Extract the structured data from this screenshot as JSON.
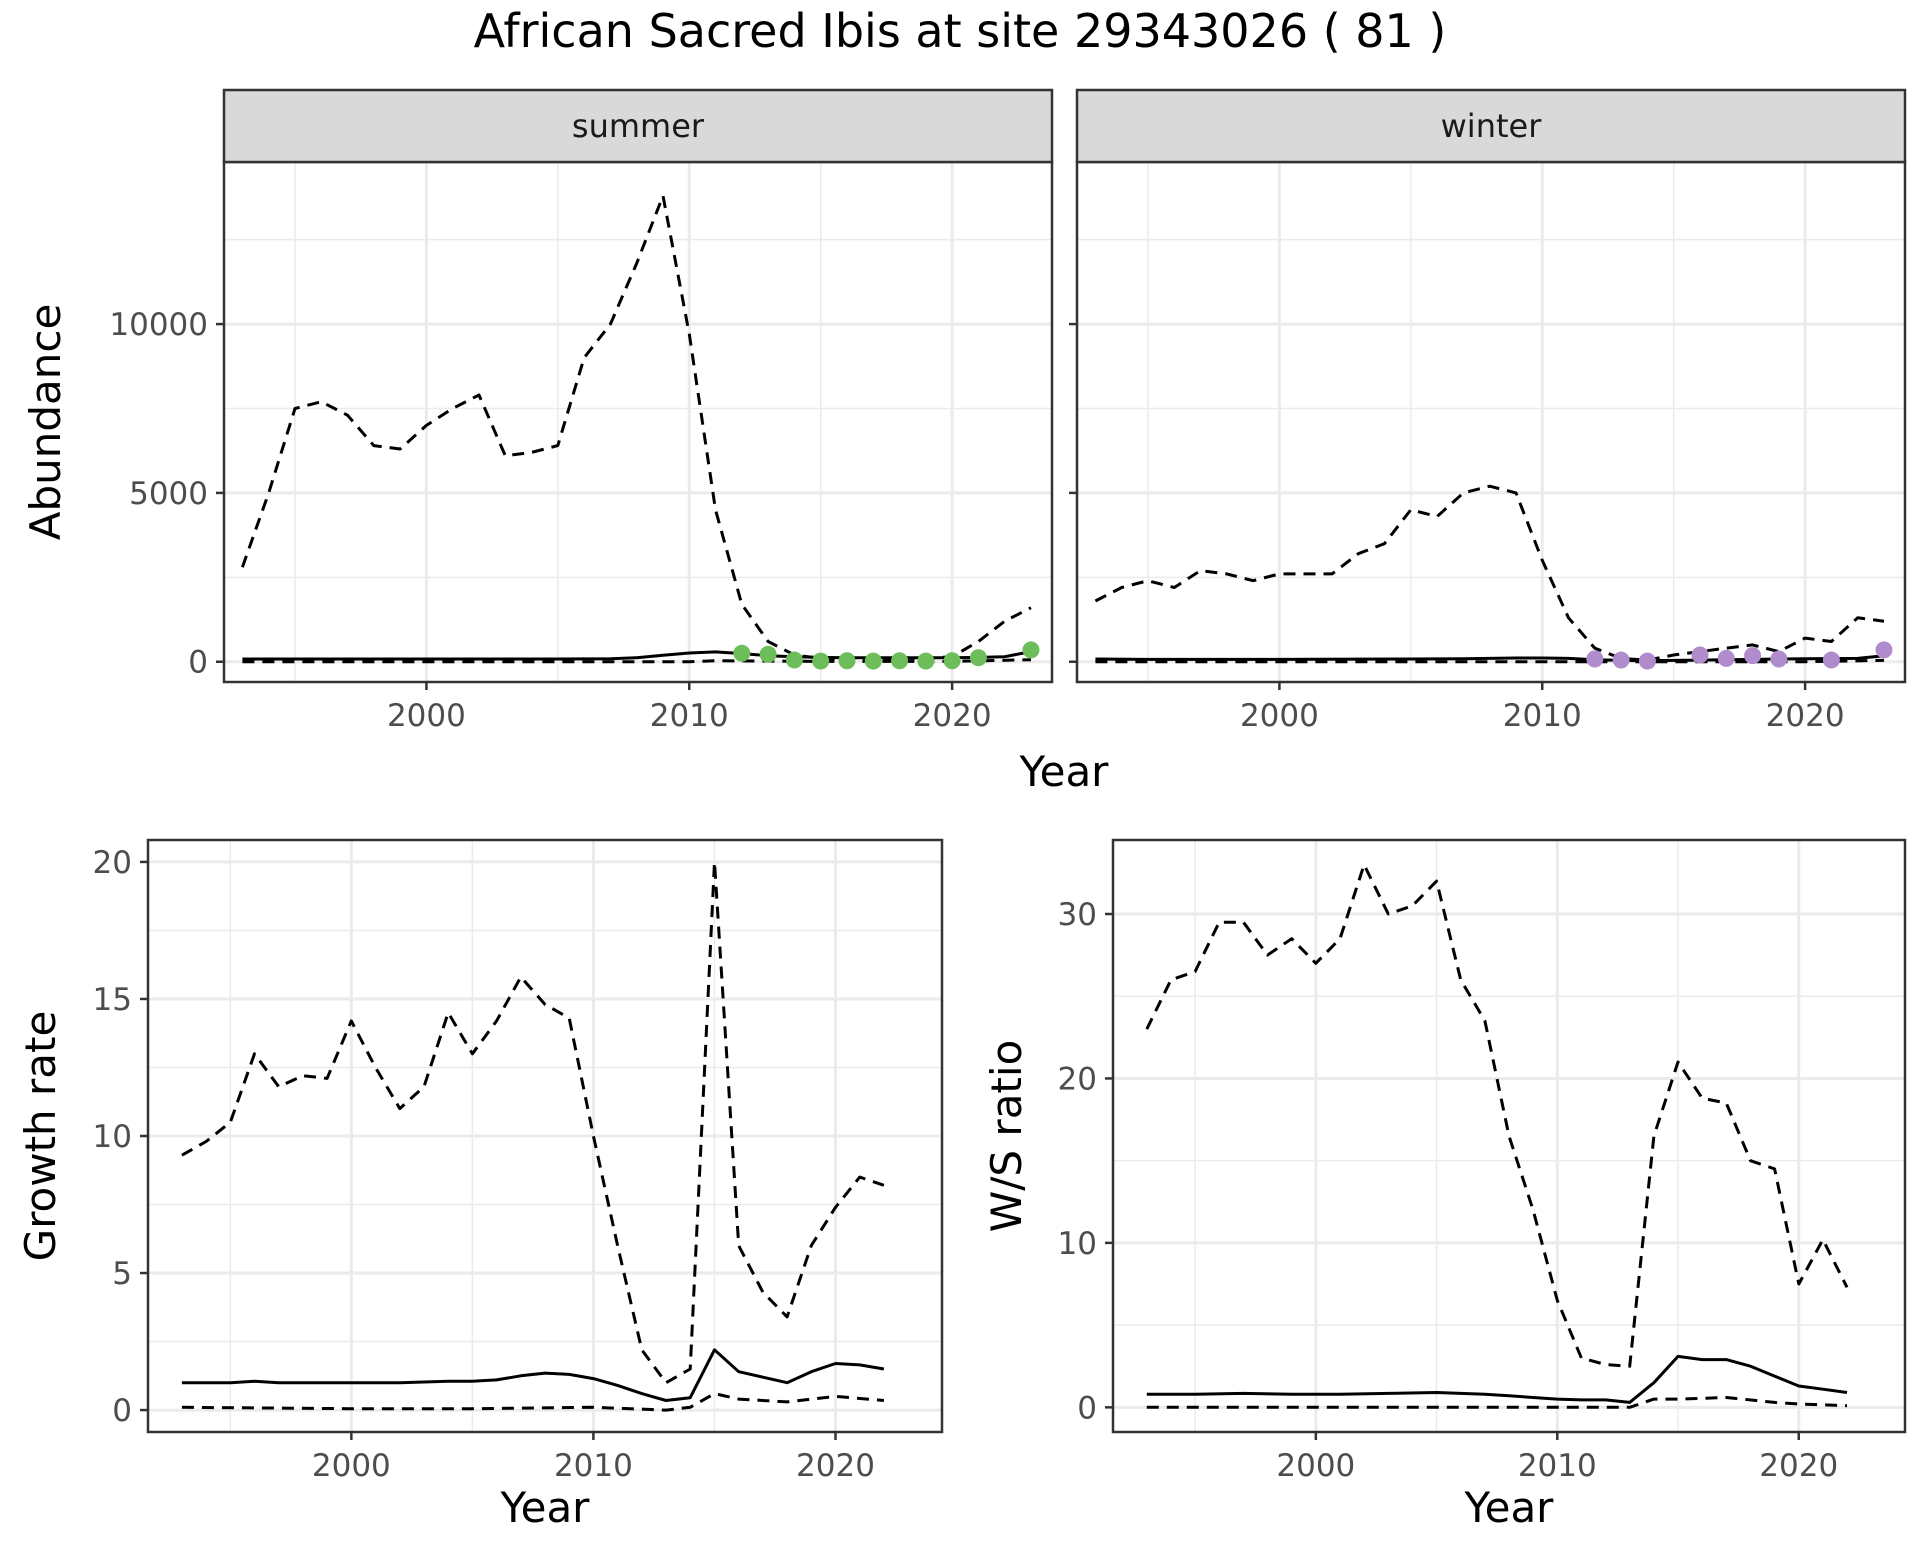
{
  "title": "African Sacred Ibis at site 29343026 ( 81 )",
  "colors": {
    "summer_points": "#6DBE5A",
    "winter_points": "#B08CCC",
    "line": "#000000",
    "strip": "#D9D9D9",
    "grid": "#EBEBEB"
  },
  "chart_data": [
    {
      "type": "line",
      "facet": "summer",
      "xlabel": "Year",
      "ylabel": "Abundance",
      "xlim": [
        1992.3,
        2023.8
      ],
      "ylim": [
        -600,
        14800
      ],
      "xticks": [
        2000,
        2010,
        2020
      ],
      "yticks": [
        0,
        5000,
        10000
      ],
      "grid": true,
      "series": [
        {
          "style": "solid",
          "x": [
            1993,
            1995,
            1997,
            1999,
            2001,
            2003,
            2005,
            2007,
            2008,
            2009,
            2010,
            2011,
            2012,
            2013,
            2014,
            2015,
            2016,
            2017,
            2018,
            2019,
            2020,
            2021,
            2022,
            2023
          ],
          "y": [
            80,
            80,
            80,
            80,
            80,
            80,
            80,
            90,
            120,
            190,
            260,
            290,
            240,
            180,
            150,
            130,
            120,
            120,
            120,
            120,
            120,
            130,
            150,
            300
          ]
        },
        {
          "style": "dashed",
          "x": [
            1993,
            1994,
            1995,
            1996,
            1997,
            1998,
            1999,
            2000,
            2001,
            2002,
            2003,
            2004,
            2005,
            2006,
            2007,
            2008,
            2009,
            2010,
            2011,
            2012,
            2013,
            2014,
            2015,
            2016,
            2017,
            2018,
            2019,
            2020,
            2021,
            2022,
            2023
          ],
          "y": [
            2800,
            5000,
            7500,
            7700,
            7300,
            6400,
            6300,
            7000,
            7500,
            7900,
            6100,
            6200,
            6400,
            9000,
            10000,
            11800,
            13800,
            9700,
            4500,
            1700,
            600,
            200,
            100,
            80,
            90,
            100,
            100,
            150,
            600,
            1200,
            1600
          ]
        },
        {
          "style": "dashed",
          "x": [
            1993,
            2000,
            2005,
            2010,
            2011,
            2015,
            2020,
            2023
          ],
          "y": [
            0,
            0,
            0,
            0,
            30,
            10,
            10,
            60
          ]
        },
        {
          "style": "points",
          "x": [
            2012,
            2013,
            2014,
            2015,
            2016,
            2017,
            2018,
            2019,
            2020,
            2021,
            2023
          ],
          "y": [
            250,
            220,
            50,
            20,
            30,
            20,
            30,
            20,
            30,
            120,
            350
          ]
        }
      ]
    },
    {
      "type": "line",
      "facet": "winter",
      "xlabel": "Year",
      "ylabel": "Abundance",
      "xlim": [
        1992.3,
        2023.8
      ],
      "ylim": [
        -600,
        14800
      ],
      "xticks": [
        2000,
        2010,
        2020
      ],
      "yticks": [
        0,
        5000,
        10000
      ],
      "grid": true,
      "series": [
        {
          "style": "solid",
          "x": [
            1993,
            1995,
            2000,
            2005,
            2007,
            2009,
            2010,
            2011,
            2012,
            2013,
            2014,
            2016,
            2018,
            2020,
            2022,
            2023
          ],
          "y": [
            80,
            70,
            70,
            80,
            90,
            110,
            110,
            100,
            60,
            40,
            30,
            50,
            70,
            90,
            100,
            180
          ]
        },
        {
          "style": "dashed",
          "x": [
            1993,
            1994,
            1995,
            1996,
            1997,
            1998,
            1999,
            2000,
            2001,
            2002,
            2003,
            2004,
            2005,
            2006,
            2007,
            2008,
            2009,
            2010,
            2011,
            2012,
            2013,
            2014,
            2015,
            2016,
            2017,
            2018,
            2019,
            2020,
            2021,
            2022,
            2023
          ],
          "y": [
            1800,
            2200,
            2400,
            2200,
            2700,
            2600,
            2400,
            2600,
            2600,
            2600,
            3200,
            3500,
            4500,
            4300,
            5000,
            5200,
            5000,
            3000,
            1300,
            400,
            100,
            50,
            200,
            300,
            400,
            500,
            300,
            700,
            600,
            1300,
            1200
          ]
        },
        {
          "style": "dashed",
          "x": [
            1993,
            2000,
            2010,
            2015,
            2020,
            2023
          ],
          "y": [
            0,
            0,
            0,
            0,
            0,
            40
          ]
        },
        {
          "style": "points",
          "x": [
            2012,
            2013,
            2014,
            2016,
            2017,
            2018,
            2019,
            2021,
            2023
          ],
          "y": [
            80,
            50,
            20,
            200,
            100,
            180,
            80,
            50,
            350
          ]
        }
      ]
    },
    {
      "type": "line",
      "xlabel": "Year",
      "ylabel": "Growth rate",
      "xlim": [
        1991.6,
        2024.4
      ],
      "ylim": [
        -0.8,
        20.8
      ],
      "xticks": [
        2000,
        2010,
        2020
      ],
      "yticks": [
        0,
        5,
        10,
        15,
        20
      ],
      "grid": true,
      "series": [
        {
          "style": "solid",
          "x": [
            1993,
            1995,
            1996,
            1997,
            1998,
            1999,
            2000,
            2002,
            2004,
            2005,
            2006,
            2007,
            2008,
            2009,
            2010,
            2011,
            2012,
            2013,
            2014,
            2015,
            2016,
            2017,
            2018,
            2019,
            2020,
            2021,
            2022
          ],
          "y": [
            1.0,
            1.0,
            1.05,
            1.0,
            1.0,
            1.0,
            1.0,
            1.0,
            1.05,
            1.05,
            1.1,
            1.25,
            1.35,
            1.3,
            1.15,
            0.9,
            0.6,
            0.35,
            0.45,
            2.2,
            1.4,
            1.2,
            1.0,
            1.4,
            1.7,
            1.65,
            1.5
          ]
        },
        {
          "style": "dashed",
          "x": [
            1993,
            1994,
            1995,
            1996,
            1997,
            1998,
            1999,
            2000,
            2001,
            2002,
            2003,
            2004,
            2005,
            2006,
            2007,
            2008,
            2009,
            2010,
            2011,
            2012,
            2013,
            2014,
            2015,
            2016,
            2017,
            2018,
            2019,
            2020,
            2021,
            2022
          ],
          "y": [
            9.3,
            9.8,
            10.5,
            13.0,
            11.8,
            12.2,
            12.1,
            14.2,
            12.5,
            11.0,
            11.8,
            14.5,
            13.0,
            14.2,
            15.8,
            14.8,
            14.3,
            10.0,
            6.0,
            2.2,
            1.0,
            1.5,
            20.0,
            6.0,
            4.3,
            3.4,
            6.0,
            7.4,
            8.5,
            8.2
          ]
        },
        {
          "style": "dashed",
          "x": [
            1993,
            2000,
            2005,
            2010,
            2013,
            2014,
            2015,
            2016,
            2018,
            2020,
            2022
          ],
          "y": [
            0.1,
            0.05,
            0.05,
            0.1,
            0.0,
            0.1,
            0.6,
            0.4,
            0.3,
            0.5,
            0.35
          ]
        }
      ]
    },
    {
      "type": "line",
      "xlabel": "Year",
      "ylabel": "W/S ratio",
      "xlim": [
        1991.6,
        2024.4
      ],
      "ylim": [
        -1.5,
        34.5
      ],
      "xticks": [
        2000,
        2010,
        2020
      ],
      "yticks": [
        0,
        10,
        20,
        30
      ],
      "grid": true,
      "series": [
        {
          "style": "solid",
          "x": [
            1993,
            1995,
            1997,
            1999,
            2001,
            2003,
            2005,
            2006,
            2007,
            2008,
            2009,
            2010,
            2011,
            2012,
            2013,
            2014,
            2015,
            2016,
            2017,
            2018,
            2019,
            2020,
            2021,
            2022
          ],
          "y": [
            0.8,
            0.8,
            0.85,
            0.8,
            0.8,
            0.85,
            0.9,
            0.85,
            0.8,
            0.7,
            0.6,
            0.5,
            0.45,
            0.45,
            0.3,
            1.5,
            3.1,
            2.9,
            2.9,
            2.5,
            1.9,
            1.3,
            1.1,
            0.9
          ]
        },
        {
          "style": "dashed",
          "x": [
            1993,
            1994,
            1995,
            1996,
            1997,
            1998,
            1999,
            2000,
            2001,
            2002,
            2003,
            2004,
            2005,
            2006,
            2007,
            2008,
            2009,
            2010,
            2011,
            2012,
            2013,
            2014,
            2015,
            2016,
            2017,
            2018,
            2019,
            2020,
            2021,
            2022
          ],
          "y": [
            23,
            26,
            26.5,
            29.5,
            29.5,
            27.5,
            28.5,
            27,
            28.5,
            33,
            30,
            30.5,
            32,
            26,
            23.5,
            16.5,
            12,
            6.5,
            3,
            2.6,
            2.5,
            16.5,
            21,
            18.8,
            18.5,
            15,
            14.5,
            7.5,
            10.2,
            7.3
          ]
        },
        {
          "style": "dashed",
          "x": [
            1993,
            2000,
            2005,
            2010,
            2013,
            2014,
            2015,
            2017,
            2019,
            2020,
            2022
          ],
          "y": [
            0,
            0,
            0,
            0,
            0,
            0.5,
            0.5,
            0.6,
            0.3,
            0.2,
            0.1
          ]
        }
      ]
    }
  ],
  "facet_labels": [
    "summer",
    "winter"
  ]
}
